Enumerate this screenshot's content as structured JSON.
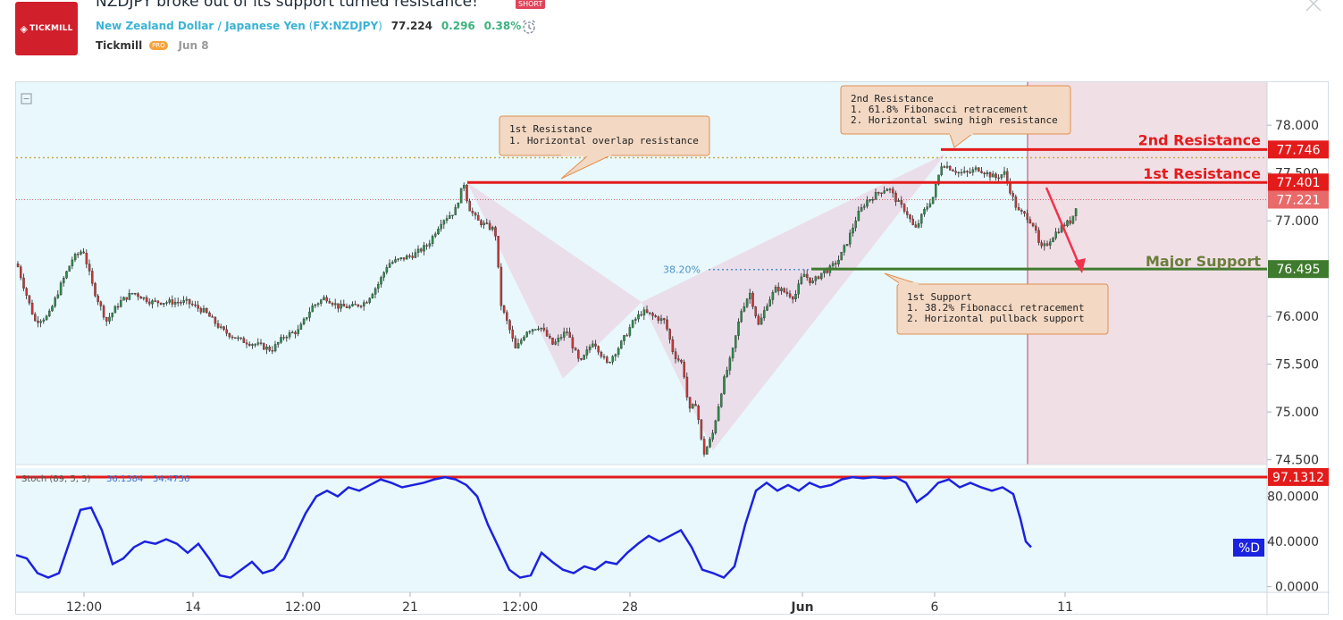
{
  "header": {
    "title": "NZDJPY broke out of its support turned resistance!",
    "badge": "SHORT",
    "logo_text": "TICKMILL",
    "symbol_name": "New Zealand Dollar / Japanese Yen",
    "symbol_code": "FX:NZDJPY",
    "price": "77.224",
    "change": "0.296",
    "change_pct": "0.38%",
    "author": "Tickmill",
    "author_badge": "PRO",
    "date": "Jun 8"
  },
  "colors": {
    "bg_chart": "#e9f8fc",
    "forecast_zone": "#f1dfe6",
    "resistance": "#e31b1b",
    "support": "#3f7b2e",
    "up_candle": "#2f8a4a",
    "down_candle": "#c23a3a",
    "stoch": "#1b22e0",
    "callout_bg": "#f3d8c3",
    "callout_border": "#e0904f",
    "pattern_fill": "#ead9e6"
  },
  "chart_data": {
    "type": "candlestick",
    "y_axis": {
      "ticks": [
        "78.000",
        "77.500",
        "77.000",
        "76.000",
        "75.500",
        "75.000",
        "74.500"
      ],
      "min": 74.45,
      "max": 78.45
    },
    "x_axis": {
      "ticks": [
        "12:00",
        "14",
        "12:00",
        "21",
        "12:00",
        "28",
        "Jun",
        "6",
        "11"
      ]
    },
    "price_path": [
      [
        0,
        76.55
      ],
      [
        8,
        76.3
      ],
      [
        20,
        75.95
      ],
      [
        35,
        76.0
      ],
      [
        50,
        76.35
      ],
      [
        62,
        76.6
      ],
      [
        74,
        76.7
      ],
      [
        85,
        76.3
      ],
      [
        100,
        75.95
      ],
      [
        115,
        76.15
      ],
      [
        130,
        76.25
      ],
      [
        150,
        76.15
      ],
      [
        170,
        76.15
      ],
      [
        190,
        76.15
      ],
      [
        210,
        76.05
      ],
      [
        230,
        75.85
      ],
      [
        250,
        75.75
      ],
      [
        270,
        75.7
      ],
      [
        285,
        75.65
      ],
      [
        300,
        75.8
      ],
      [
        315,
        75.85
      ],
      [
        330,
        76.1
      ],
      [
        345,
        76.2
      ],
      [
        360,
        76.1
      ],
      [
        375,
        76.1
      ],
      [
        390,
        76.15
      ],
      [
        405,
        76.35
      ],
      [
        415,
        76.55
      ],
      [
        430,
        76.6
      ],
      [
        445,
        76.65
      ],
      [
        460,
        76.75
      ],
      [
        475,
        77.0
      ],
      [
        490,
        77.1
      ],
      [
        500,
        77.4
      ],
      [
        505,
        77.15
      ],
      [
        515,
        77.0
      ],
      [
        525,
        76.95
      ],
      [
        535,
        76.9
      ],
      [
        542,
        76.1
      ],
      [
        550,
        75.9
      ],
      [
        558,
        75.65
      ],
      [
        570,
        75.85
      ],
      [
        585,
        75.9
      ],
      [
        600,
        75.7
      ],
      [
        615,
        75.85
      ],
      [
        630,
        75.5
      ],
      [
        645,
        75.75
      ],
      [
        660,
        75.5
      ],
      [
        675,
        75.7
      ],
      [
        690,
        75.95
      ],
      [
        700,
        76.05
      ],
      [
        712,
        76.0
      ],
      [
        725,
        75.95
      ],
      [
        735,
        75.6
      ],
      [
        745,
        75.5
      ],
      [
        752,
        75.0
      ],
      [
        760,
        75.1
      ],
      [
        768,
        74.55
      ],
      [
        778,
        74.75
      ],
      [
        790,
        75.3
      ],
      [
        800,
        75.6
      ],
      [
        810,
        76.05
      ],
      [
        820,
        76.25
      ],
      [
        830,
        75.9
      ],
      [
        840,
        76.15
      ],
      [
        850,
        76.3
      ],
      [
        860,
        76.25
      ],
      [
        870,
        76.2
      ],
      [
        880,
        76.45
      ],
      [
        890,
        76.35
      ],
      [
        900,
        76.45
      ],
      [
        910,
        76.5
      ],
      [
        920,
        76.6
      ],
      [
        930,
        76.8
      ],
      [
        940,
        77.05
      ],
      [
        950,
        77.2
      ],
      [
        965,
        77.3
      ],
      [
        975,
        77.35
      ],
      [
        985,
        77.2
      ],
      [
        995,
        77.1
      ],
      [
        1005,
        76.9
      ],
      [
        1015,
        77.1
      ],
      [
        1025,
        77.25
      ],
      [
        1035,
        77.6
      ],
      [
        1045,
        77.55
      ],
      [
        1055,
        77.5
      ],
      [
        1065,
        77.5
      ],
      [
        1075,
        77.55
      ],
      [
        1085,
        77.5
      ],
      [
        1095,
        77.45
      ],
      [
        1105,
        77.5
      ],
      [
        1112,
        77.3
      ],
      [
        1120,
        77.1
      ],
      [
        1130,
        77.05
      ],
      [
        1138,
        76.95
      ],
      [
        1145,
        76.7
      ],
      [
        1152,
        76.75
      ],
      [
        1160,
        76.85
      ],
      [
        1170,
        76.95
      ],
      [
        1180,
        77.0
      ],
      [
        1188,
        77.25
      ]
    ],
    "levels": [
      {
        "label": "2nd Resistance",
        "value": 77.746,
        "display": "77.746"
      },
      {
        "label": "1st Resistance",
        "value": 77.401,
        "display": "77.401"
      },
      {
        "label": "Major Support",
        "value": 76.495,
        "display": "76.495"
      }
    ],
    "current_price": {
      "value": 77.221,
      "display": "77.221"
    },
    "fib_label": "38.20%",
    "annotations": [
      {
        "title": "1st Resistance",
        "lines": [
          "1. Horizontal overlap resistance"
        ]
      },
      {
        "title": "2nd Resistance",
        "lines": [
          "1. 61.8% Fibonacci retracement",
          "2. Horizontal swing high resistance"
        ]
      },
      {
        "title": "1st Support",
        "lines": [
          "1. 38.2% Fibonacci retracement",
          "2. Horizontal pullback support"
        ]
      }
    ],
    "stochastic": {
      "label": "Stoch (89, 5, 3)",
      "k_value": "36.1384",
      "d_value": "34.4736",
      "series_name": "%D",
      "level_display": "97.1312",
      "level_value": 97.1312,
      "y_ticks": [
        "80.0000",
        "40.0000",
        "0.0000"
      ],
      "min": -5,
      "max": 105,
      "values": [
        [
          0,
          28
        ],
        [
          12,
          25
        ],
        [
          24,
          12
        ],
        [
          36,
          8
        ],
        [
          48,
          12
        ],
        [
          60,
          40
        ],
        [
          72,
          68
        ],
        [
          84,
          70
        ],
        [
          96,
          50
        ],
        [
          108,
          20
        ],
        [
          120,
          25
        ],
        [
          132,
          35
        ],
        [
          144,
          40
        ],
        [
          156,
          38
        ],
        [
          168,
          42
        ],
        [
          180,
          38
        ],
        [
          192,
          30
        ],
        [
          204,
          38
        ],
        [
          216,
          25
        ],
        [
          228,
          10
        ],
        [
          240,
          8
        ],
        [
          252,
          15
        ],
        [
          264,
          22
        ],
        [
          276,
          12
        ],
        [
          288,
          15
        ],
        [
          300,
          25
        ],
        [
          312,
          45
        ],
        [
          324,
          65
        ],
        [
          336,
          80
        ],
        [
          348,
          85
        ],
        [
          360,
          80
        ],
        [
          372,
          88
        ],
        [
          384,
          85
        ],
        [
          396,
          90
        ],
        [
          408,
          95
        ],
        [
          420,
          92
        ],
        [
          432,
          88
        ],
        [
          444,
          90
        ],
        [
          456,
          92
        ],
        [
          468,
          95
        ],
        [
          480,
          97
        ],
        [
          492,
          95
        ],
        [
          504,
          90
        ],
        [
          516,
          80
        ],
        [
          528,
          55
        ],
        [
          540,
          35
        ],
        [
          552,
          15
        ],
        [
          564,
          8
        ],
        [
          576,
          10
        ],
        [
          588,
          30
        ],
        [
          600,
          22
        ],
        [
          612,
          15
        ],
        [
          624,
          12
        ],
        [
          636,
          18
        ],
        [
          648,
          15
        ],
        [
          660,
          22
        ],
        [
          672,
          20
        ],
        [
          684,
          30
        ],
        [
          696,
          38
        ],
        [
          708,
          45
        ],
        [
          720,
          40
        ],
        [
          732,
          45
        ],
        [
          744,
          50
        ],
        [
          756,
          35
        ],
        [
          768,
          15
        ],
        [
          780,
          12
        ],
        [
          792,
          8
        ],
        [
          804,
          18
        ],
        [
          816,
          55
        ],
        [
          828,
          85
        ],
        [
          840,
          92
        ],
        [
          852,
          85
        ],
        [
          864,
          90
        ],
        [
          876,
          85
        ],
        [
          888,
          92
        ],
        [
          900,
          88
        ],
        [
          912,
          90
        ],
        [
          924,
          95
        ],
        [
          936,
          97
        ],
        [
          948,
          96
        ],
        [
          960,
          97
        ],
        [
          972,
          96
        ],
        [
          984,
          97
        ],
        [
          996,
          92
        ],
        [
          1008,
          75
        ],
        [
          1020,
          82
        ],
        [
          1032,
          92
        ],
        [
          1044,
          95
        ],
        [
          1056,
          88
        ],
        [
          1068,
          92
        ],
        [
          1080,
          88
        ],
        [
          1092,
          85
        ],
        [
          1104,
          88
        ],
        [
          1116,
          82
        ],
        [
          1124,
          60
        ],
        [
          1130,
          40
        ],
        [
          1136,
          35
        ]
      ]
    }
  }
}
